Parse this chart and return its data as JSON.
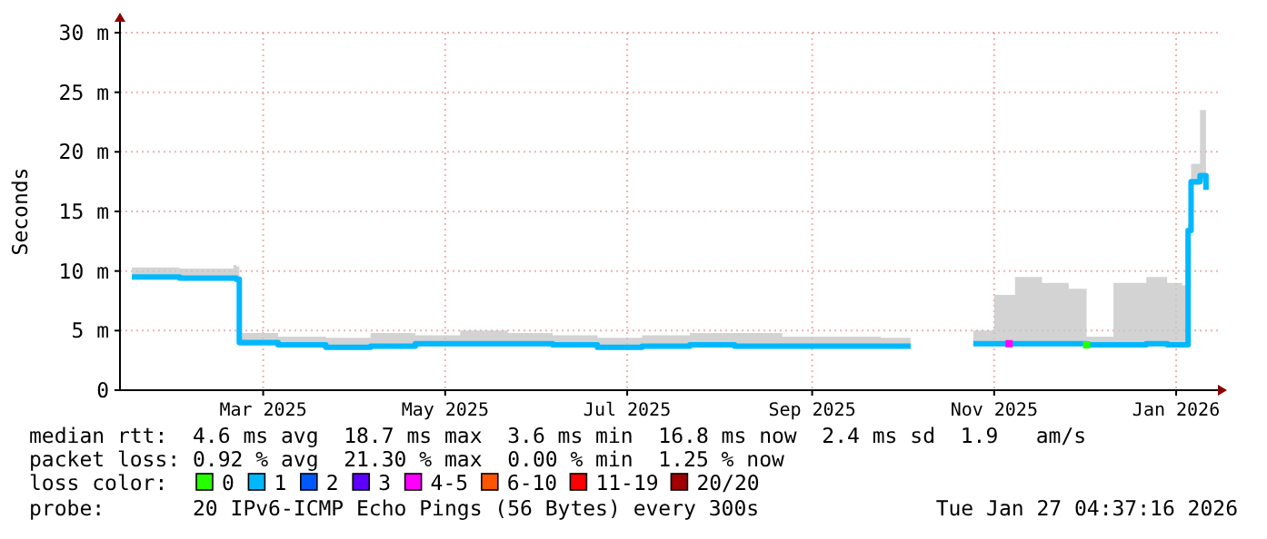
{
  "chart_data": {
    "type": "line",
    "ylabel": "Seconds",
    "legend_title": "loss color:",
    "legend": "bottom",
    "grid": true,
    "line_style": "solid",
    "xlim": [
      "2025-01-26",
      "2026-01-29"
    ],
    "xticks": [
      {
        "value": "2025-03-15",
        "label": "Mar 2025"
      },
      {
        "value": "2025-05-15",
        "label": "May 2025"
      },
      {
        "value": "2025-07-15",
        "label": "Jul 2025"
      },
      {
        "value": "2025-09-15",
        "label": "Sep 2025"
      },
      {
        "value": "2025-11-15",
        "label": "Nov 2025"
      },
      {
        "value": "2026-01-15",
        "label": "Jan 2026"
      }
    ],
    "ylim": [
      0,
      30
    ],
    "yticks": [
      {
        "value": 0,
        "label": "0"
      },
      {
        "value": 5,
        "label": "5 m"
      },
      {
        "value": 10,
        "label": "10 m"
      },
      {
        "value": 15,
        "label": "15 m"
      },
      {
        "value": 20,
        "label": "20 m"
      },
      {
        "value": 25,
        "label": "25 m"
      },
      {
        "value": 30,
        "label": "30 m"
      }
    ],
    "series": [
      {
        "name": "0",
        "color": "#26ff00",
        "type": "scatter",
        "marker": "square",
        "x": [
          "2025-12-16"
        ],
        "values": [
          3.8
        ]
      },
      {
        "name": "1",
        "color": "#00b8ff",
        "x": [
          "2025-01-30",
          "2025-02-15",
          "2025-03-05",
          "2025-03-06",
          "2025-03-07",
          "2025-03-20",
          "2025-04-05",
          "2025-04-20",
          "2025-05-05",
          "2025-05-20",
          "2025-06-05",
          "2025-06-20",
          "2025-07-05",
          "2025-07-20",
          "2025-08-05",
          "2025-08-20",
          "2025-09-05",
          "2025-09-20",
          "2025-10-08",
          "2025-10-18",
          "2025-10-28",
          "2025-11-08",
          "2025-11-15",
          "2025-11-22",
          "2025-12-01",
          "2025-12-10",
          "2025-12-16",
          "2025-12-25",
          "2026-01-05",
          "2026-01-12",
          "2026-01-17",
          "2026-01-19",
          "2026-01-20",
          "2026-01-23",
          "2026-01-25"
        ],
        "values": [
          9.5,
          9.4,
          9.4,
          9.3,
          4.0,
          3.8,
          3.6,
          3.7,
          3.9,
          3.9,
          3.9,
          3.8,
          3.6,
          3.7,
          3.8,
          3.7,
          3.7,
          3.7,
          3.7,
          3.7,
          null,
          3.9,
          3.9,
          3.9,
          3.9,
          3.9,
          3.8,
          3.8,
          3.9,
          3.8,
          3.8,
          13.4,
          17.5,
          18.0,
          16.8
        ],
        "lower": [
          9.3,
          9.2,
          9.2,
          9.1,
          3.7,
          3.6,
          3.4,
          3.5,
          3.7,
          3.7,
          3.7,
          3.6,
          3.4,
          3.5,
          3.6,
          3.5,
          3.5,
          3.5,
          3.5,
          3.5,
          null,
          3.7,
          3.7,
          3.7,
          3.7,
          3.7,
          3.6,
          3.6,
          3.7,
          3.6,
          3.6,
          13.2,
          17.2,
          17.5,
          16.5
        ],
        "upper": [
          10.3,
          10.2,
          10.5,
          10.4,
          4.8,
          4.5,
          4.4,
          4.8,
          4.6,
          5.0,
          4.8,
          4.6,
          4.4,
          4.6,
          4.8,
          4.8,
          4.5,
          4.5,
          4.4,
          4.2,
          null,
          5.0,
          8.0,
          9.5,
          9.0,
          8.5,
          4.5,
          9.0,
          9.5,
          9.0,
          8.8,
          14.0,
          19.0,
          23.5,
          21.0
        ]
      },
      {
        "name": "2",
        "color": "#0059ff"
      },
      {
        "name": "3",
        "color": "#5e00ff"
      },
      {
        "name": "4-5",
        "color": "#ff00ff",
        "type": "scatter",
        "marker": "square",
        "x": [
          "2025-11-20"
        ],
        "values": [
          3.9
        ]
      },
      {
        "name": "6-10",
        "color": "#ff5500"
      },
      {
        "name": "11-19",
        "color": "#ff0000"
      },
      {
        "name": "20/20",
        "color": "#a10000"
      }
    ],
    "annotations": [
      "median rtt:  4.6 ms avg  18.7 ms max  3.6 ms min  16.8 ms now  2.4 ms sd  1.9   am/s",
      "packet loss: 0.92 % avg  21.30 % max  0.00 % min  1.25 % now",
      "probe:       20 IPv6-ICMP Echo Pings (56 Bytes) every 300s",
      "Tue Jan 27 04:37:16 2026"
    ]
  }
}
